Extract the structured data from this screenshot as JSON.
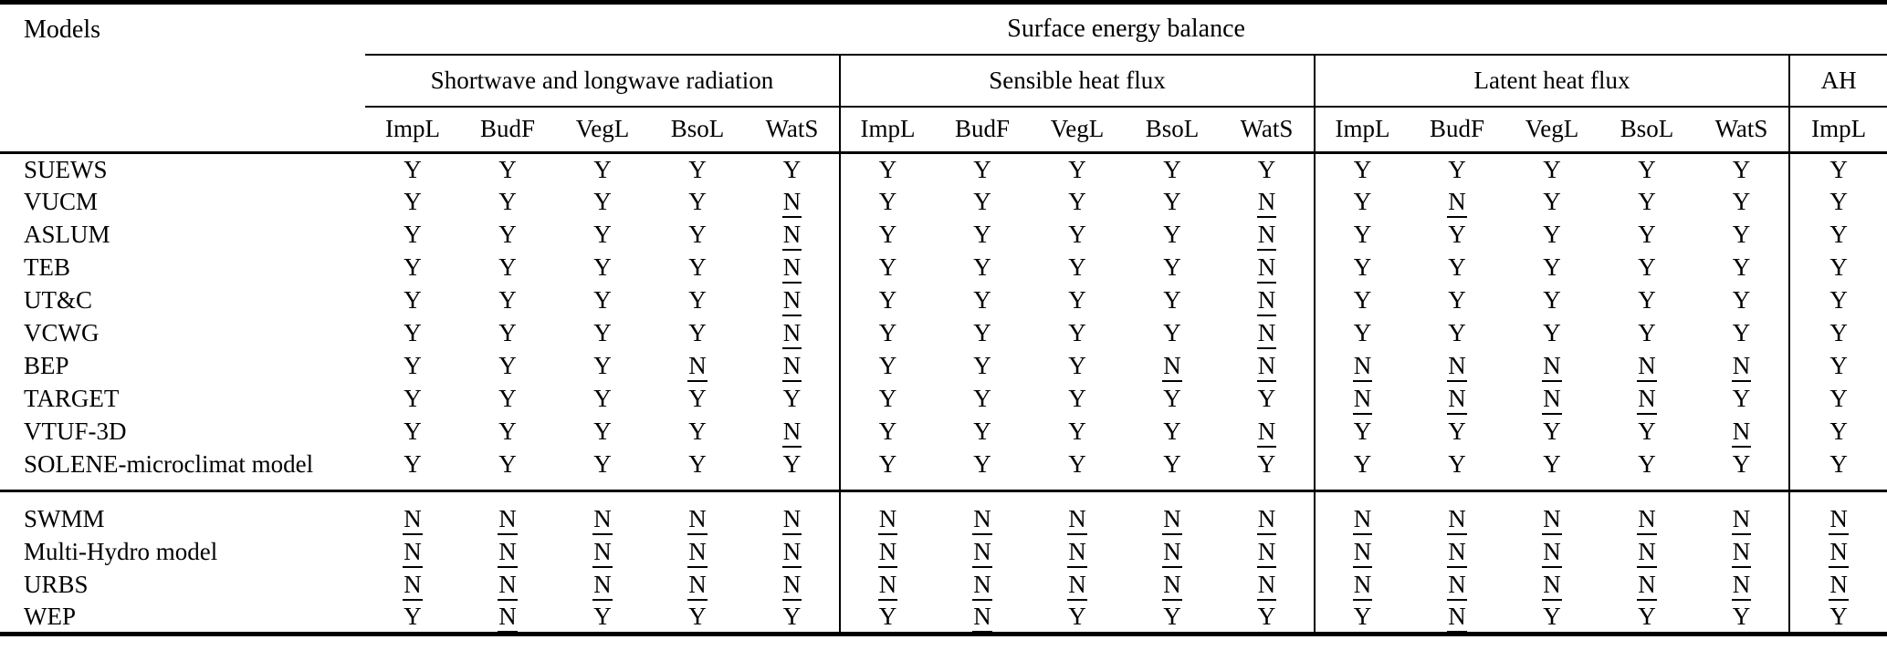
{
  "table": {
    "corner_label": "Models",
    "banner": "Surface energy balance",
    "groups": [
      {
        "label": "Shortwave and longwave radiation",
        "columns": [
          "ImpL",
          "BudF",
          "VegL",
          "BsoL",
          "WatS"
        ]
      },
      {
        "label": "Sensible heat flux",
        "columns": [
          "ImpL",
          "BudF",
          "VegL",
          "BsoL",
          "WatS"
        ]
      },
      {
        "label": "Latent heat flux",
        "columns": [
          "ImpL",
          "BudF",
          "VegL",
          "BsoL",
          "WatS"
        ]
      },
      {
        "label": "AH",
        "columns": [
          "ImpL"
        ]
      }
    ],
    "value_symbols": {
      "yes": "Y",
      "no": "N",
      "no_style": "underlined"
    },
    "sections": [
      {
        "rows": [
          {
            "model": "SUEWS",
            "values": [
              "Y",
              "Y",
              "Y",
              "Y",
              "Y",
              "Y",
              "Y",
              "Y",
              "Y",
              "Y",
              "Y",
              "Y",
              "Y",
              "Y",
              "Y",
              "Y"
            ]
          },
          {
            "model": "VUCM",
            "values": [
              "Y",
              "Y",
              "Y",
              "Y",
              "N",
              "Y",
              "Y",
              "Y",
              "Y",
              "N",
              "Y",
              "N",
              "Y",
              "Y",
              "Y",
              "Y"
            ]
          },
          {
            "model": "ASLUM",
            "values": [
              "Y",
              "Y",
              "Y",
              "Y",
              "N",
              "Y",
              "Y",
              "Y",
              "Y",
              "N",
              "Y",
              "Y",
              "Y",
              "Y",
              "Y",
              "Y"
            ]
          },
          {
            "model": "TEB",
            "values": [
              "Y",
              "Y",
              "Y",
              "Y",
              "N",
              "Y",
              "Y",
              "Y",
              "Y",
              "N",
              "Y",
              "Y",
              "Y",
              "Y",
              "Y",
              "Y"
            ]
          },
          {
            "model": "UT&C",
            "values": [
              "Y",
              "Y",
              "Y",
              "Y",
              "N",
              "Y",
              "Y",
              "Y",
              "Y",
              "N",
              "Y",
              "Y",
              "Y",
              "Y",
              "Y",
              "Y"
            ]
          },
          {
            "model": "VCWG",
            "values": [
              "Y",
              "Y",
              "Y",
              "Y",
              "N",
              "Y",
              "Y",
              "Y",
              "Y",
              "N",
              "Y",
              "Y",
              "Y",
              "Y",
              "Y",
              "Y"
            ]
          },
          {
            "model": "BEP",
            "values": [
              "Y",
              "Y",
              "Y",
              "N",
              "N",
              "Y",
              "Y",
              "Y",
              "N",
              "N",
              "N",
              "N",
              "N",
              "N",
              "N",
              "Y"
            ]
          },
          {
            "model": "TARGET",
            "values": [
              "Y",
              "Y",
              "Y",
              "Y",
              "Y",
              "Y",
              "Y",
              "Y",
              "Y",
              "Y",
              "N",
              "N",
              "N",
              "N",
              "Y",
              "Y"
            ]
          },
          {
            "model": "VTUF-3D",
            "values": [
              "Y",
              "Y",
              "Y",
              "Y",
              "N",
              "Y",
              "Y",
              "Y",
              "Y",
              "N",
              "Y",
              "Y",
              "Y",
              "Y",
              "N",
              "Y"
            ]
          },
          {
            "model": "SOLENE-microclimat model",
            "values": [
              "Y",
              "Y",
              "Y",
              "Y",
              "Y",
              "Y",
              "Y",
              "Y",
              "Y",
              "Y",
              "Y",
              "Y",
              "Y",
              "Y",
              "Y",
              "Y"
            ]
          }
        ]
      },
      {
        "rows": [
          {
            "model": "SWMM",
            "values": [
              "N",
              "N",
              "N",
              "N",
              "N",
              "N",
              "N",
              "N",
              "N",
              "N",
              "N",
              "N",
              "N",
              "N",
              "N",
              "N"
            ]
          },
          {
            "model": "Multi-Hydro model",
            "values": [
              "N",
              "N",
              "N",
              "N",
              "N",
              "N",
              "N",
              "N",
              "N",
              "N",
              "N",
              "N",
              "N",
              "N",
              "N",
              "N"
            ]
          },
          {
            "model": "URBS",
            "values": [
              "N",
              "N",
              "N",
              "N",
              "N",
              "N",
              "N",
              "N",
              "N",
              "N",
              "N",
              "N",
              "N",
              "N",
              "N",
              "N"
            ]
          },
          {
            "model": "WEP",
            "values": [
              "Y",
              "N",
              "Y",
              "Y",
              "Y",
              "Y",
              "N",
              "Y",
              "Y",
              "Y",
              "Y",
              "N",
              "Y",
              "Y",
              "Y",
              "Y"
            ]
          }
        ]
      }
    ]
  }
}
